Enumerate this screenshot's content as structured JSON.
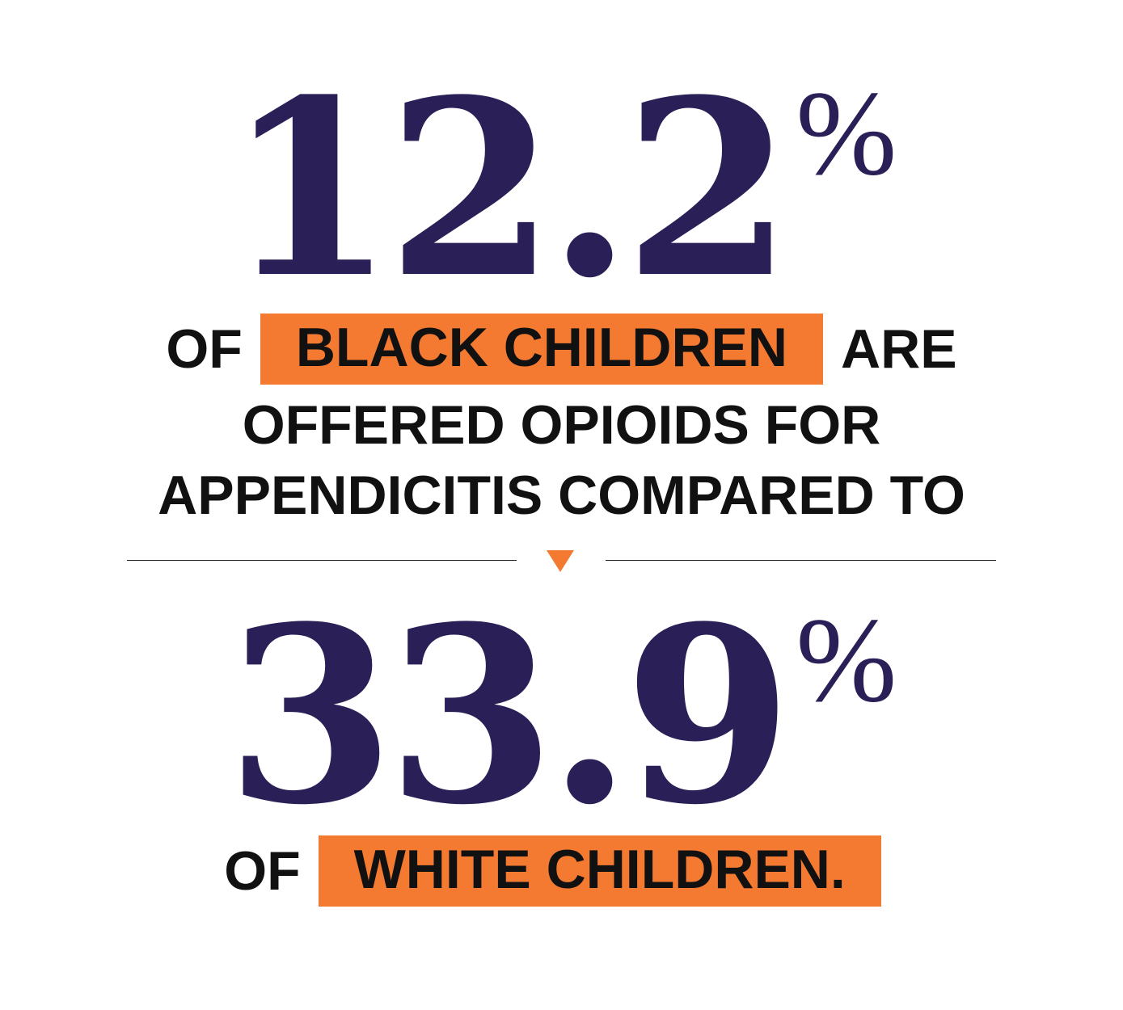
{
  "top_stat": {
    "value": "12.2",
    "unit": "%"
  },
  "line1": {
    "prefix": "OF",
    "highlight": "BLACK CHILDREN",
    "suffix": "ARE"
  },
  "line2": "OFFERED OPIOIDS FOR",
  "line3": "APPENDICITIS COMPARED TO",
  "bottom_stat": {
    "value": "33.9",
    "unit": "%"
  },
  "line4": {
    "prefix": "OF",
    "highlight": "WHITE CHILDREN."
  },
  "colors": {
    "stat_navy": "#2b1f57",
    "highlight_orange": "#f47a31",
    "text_black": "#111111",
    "background": "#ffffff"
  },
  "icons": {
    "divider_marker": "down-triangle-icon"
  }
}
